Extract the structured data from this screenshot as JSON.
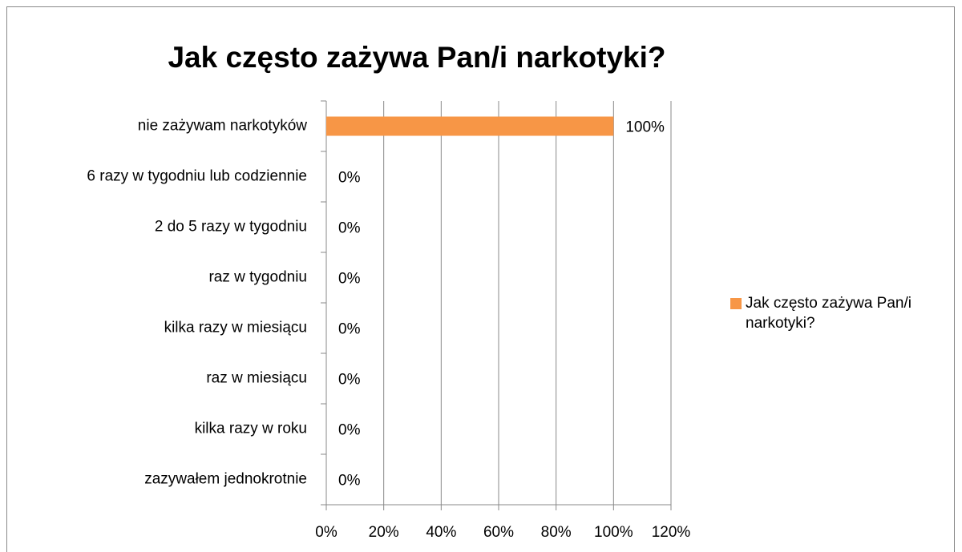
{
  "chart_data": {
    "type": "hbar",
    "title": "Jak często zażywa Pan/i narkotyki?",
    "categories": [
      "nie zażywam narkotyków",
      "6 razy w tygodniu lub codziennie",
      "2 do 5 razy w tygodniu",
      "raz w tygodniu",
      "kilka razy w miesiącu",
      "raz w miesiącu",
      "kilka razy w roku",
      "zazywałem jednokrotnie"
    ],
    "series": [
      {
        "name": "Jak często zażywa Pan/i narkotyki?",
        "color": "#f79646",
        "values": [
          100,
          0,
          0,
          0,
          0,
          0,
          0,
          0
        ],
        "value_labels": [
          "100%",
          "0%",
          "0%",
          "0%",
          "0%",
          "0%",
          "0%",
          "0%"
        ]
      }
    ],
    "xlim": [
      0,
      120
    ],
    "xticks": [
      {
        "value": 0,
        "label": "0%"
      },
      {
        "value": 20,
        "label": "20%"
      },
      {
        "value": 40,
        "label": "40%"
      },
      {
        "value": 60,
        "label": "60%"
      },
      {
        "value": 80,
        "label": "80%"
      },
      {
        "value": 100,
        "label": "100%"
      },
      {
        "value": 120,
        "label": "120%"
      }
    ],
    "grid": true,
    "legend": "right"
  }
}
